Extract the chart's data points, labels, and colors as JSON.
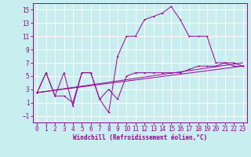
{
  "xlabel": "Windchill (Refroidissement éolien,°C)",
  "background_color": "#c8eef0",
  "grid_color": "#ffffff",
  "line_color": "#990099",
  "xlim": [
    -0.5,
    23.5
  ],
  "ylim": [
    -2.0,
    16.0
  ],
  "xticks": [
    0,
    1,
    2,
    3,
    4,
    5,
    6,
    7,
    8,
    9,
    10,
    11,
    12,
    13,
    14,
    15,
    16,
    17,
    18,
    19,
    20,
    21,
    22,
    23
  ],
  "yticks": [
    -1,
    1,
    3,
    5,
    7,
    9,
    11,
    13,
    15
  ],
  "series1_x": [
    0,
    1,
    2,
    3,
    4,
    5,
    6,
    7,
    8,
    9,
    10,
    11,
    12,
    13,
    14,
    15,
    16,
    17,
    18,
    19,
    20,
    21,
    22,
    23
  ],
  "series1_y": [
    2.5,
    5.5,
    2.0,
    5.5,
    0.5,
    5.5,
    5.5,
    1.5,
    -0.5,
    8.0,
    11.0,
    11.0,
    13.5,
    14.0,
    14.5,
    15.5,
    13.5,
    11.0,
    11.0,
    11.0,
    7.0,
    7.0,
    6.5,
    6.5
  ],
  "series2_x": [
    0,
    1,
    2,
    3,
    4,
    5,
    6,
    7,
    8,
    9,
    10,
    11,
    12,
    13,
    14,
    15,
    16,
    17,
    18,
    19,
    20,
    21,
    22,
    23
  ],
  "series2_y": [
    2.5,
    5.5,
    2.0,
    2.0,
    1.0,
    5.5,
    5.5,
    1.5,
    3.0,
    1.5,
    5.0,
    5.5,
    5.5,
    5.5,
    5.5,
    5.5,
    5.5,
    6.0,
    6.5,
    6.5,
    6.5,
    7.0,
    7.0,
    6.5
  ],
  "series3_x": [
    0,
    23
  ],
  "series3_y": [
    2.5,
    6.5
  ],
  "series4_x": [
    0,
    23
  ],
  "series4_y": [
    2.5,
    7.0
  ],
  "tick_fontsize": 5.5,
  "xlabel_fontsize": 5.5,
  "lw": 0.7,
  "ms": 2.0
}
